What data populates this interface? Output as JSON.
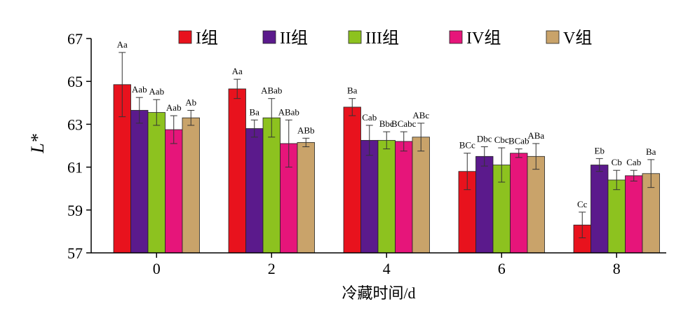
{
  "chart_data": {
    "type": "bar",
    "xlabel": "冷藏时间/d",
    "ylabel": "L*",
    "ylim": [
      57,
      67
    ],
    "yticks": [
      57,
      59,
      61,
      63,
      65,
      67
    ],
    "categories": [
      "0",
      "2",
      "4",
      "6",
      "8"
    ],
    "legend_position": "top",
    "grid": false,
    "series": [
      {
        "name": "I组",
        "color": "#e8121d",
        "values": [
          64.85,
          64.65,
          63.8,
          60.8,
          58.3
        ],
        "errors": [
          1.5,
          0.45,
          0.4,
          0.85,
          0.6
        ],
        "labels": [
          "Aa",
          "Aa",
          "Ba",
          "BCc",
          "Cc"
        ]
      },
      {
        "name": "II组",
        "color": "#5b1a8c",
        "values": [
          63.65,
          62.8,
          62.25,
          61.5,
          61.1
        ],
        "errors": [
          0.6,
          0.4,
          0.7,
          0.45,
          0.3
        ],
        "labels": [
          "Aab",
          "Ba",
          "Cab",
          "Dbc",
          "Eb"
        ]
      },
      {
        "name": "III组",
        "color": "#8dc21f",
        "values": [
          63.55,
          63.3,
          62.25,
          61.1,
          60.4
        ],
        "errors": [
          0.6,
          0.9,
          0.4,
          0.8,
          0.45
        ],
        "labels": [
          "Aab",
          "ABab",
          "Bbc",
          "Cbc",
          "Cb"
        ]
      },
      {
        "name": "IV组",
        "color": "#e6157a",
        "values": [
          62.75,
          62.1,
          62.2,
          61.65,
          60.6
        ],
        "errors": [
          0.65,
          1.1,
          0.45,
          0.2,
          0.25
        ],
        "labels": [
          "Aab",
          "ABab",
          "BCabc",
          "BCab",
          "Cab"
        ]
      },
      {
        "name": "V组",
        "color": "#c9a36a",
        "values": [
          63.3,
          62.15,
          62.4,
          61.5,
          60.7
        ],
        "errors": [
          0.35,
          0.2,
          0.65,
          0.6,
          0.65
        ],
        "labels": [
          "Ab",
          "ABb",
          "ABc",
          "ABa",
          "Ba"
        ]
      }
    ]
  }
}
